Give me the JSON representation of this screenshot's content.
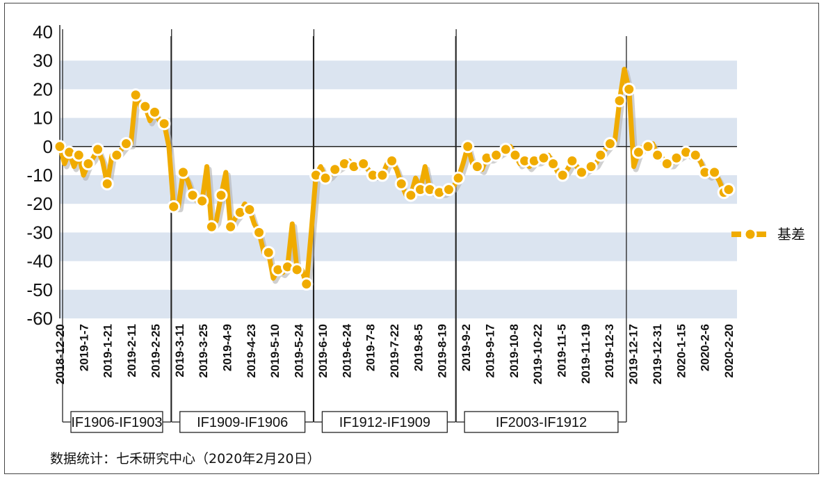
{
  "chart_data": {
    "type": "line",
    "title": "",
    "xlabel": "",
    "ylabel": "",
    "ylim": [
      -60,
      40
    ],
    "y_ticks": [
      40,
      30,
      20,
      10,
      0,
      -10,
      -20,
      -30,
      -40,
      -50,
      -60
    ],
    "x_tick_labels": [
      "2018-12-20",
      "2019-1-7",
      "2019-1-21",
      "2019-2-11",
      "2019-2-25",
      "2019-3-11",
      "2019-3-25",
      "2019-4-9",
      "2019-4-23",
      "2019-5-10",
      "2019-5-24",
      "2019-6-10",
      "2019-6-24",
      "2019-7-8",
      "2019-7-22",
      "2019-8-5",
      "2019-8-19",
      "2019-9-2",
      "2019-9-17",
      "2019-10-8",
      "2019-10-22",
      "2019-11-5",
      "2019-11-19",
      "2019-12-3",
      "2019-12-17",
      "2019-12-31",
      "2020-1-15",
      "2020-2-6",
      "2020-2-20"
    ],
    "grid": "alternating horizontal bands",
    "legend_position": "right",
    "series": [
      {
        "name": "基差",
        "color": "#f0ab00",
        "values": [
          0,
          -6,
          -2,
          -7,
          -3,
          -10,
          -6,
          -4,
          -1,
          -5,
          -13,
          -3,
          -3,
          -1,
          1,
          1,
          18,
          14,
          14,
          9,
          12,
          9,
          8,
          0,
          -21,
          -21,
          -9,
          -12,
          -17,
          -19,
          -19,
          -7,
          -28,
          -26,
          -17,
          -9,
          -28,
          -25,
          -23,
          -20,
          -22,
          -27,
          -30,
          -37,
          -37,
          -46,
          -43,
          -44,
          -42,
          -27,
          -43,
          -43,
          -48,
          -30,
          -10,
          -7,
          -11,
          -10,
          -8,
          -7,
          -6,
          -5,
          -7,
          -6,
          -6,
          -8,
          -10,
          -10,
          -10,
          -6,
          -5,
          -8,
          -13,
          -17,
          -17,
          -11,
          -15,
          -7,
          -15,
          -16,
          -16,
          -16,
          -15,
          -14,
          -11,
          -6,
          0,
          -6,
          -7,
          -8,
          -4,
          -4,
          -3,
          -2,
          -1,
          0,
          -3,
          -6,
          -5,
          -7,
          -5,
          -5,
          -4,
          -3,
          -6,
          -9,
          -10,
          -8,
          -5,
          -7,
          -9,
          -8,
          -7,
          -6,
          -3,
          -1,
          1,
          2,
          16,
          27,
          20,
          -7,
          -2,
          0,
          0,
          1,
          -3,
          -4,
          -6,
          -6,
          -4,
          -3,
          -2,
          -3,
          -3,
          -5,
          -9,
          -10,
          -9,
          -12,
          -16,
          -15
        ]
      }
    ],
    "contract_periods": [
      {
        "label": "IF1906-IF1903",
        "start_index": 1,
        "end_index": 23
      },
      {
        "label": "IF1909-IF1906",
        "start_index": 24,
        "end_index": 53
      },
      {
        "label": "IF1912-IF1909",
        "start_index": 54,
        "end_index": 83
      },
      {
        "label": "IF2003-IF1912",
        "start_index": 84,
        "end_index": 119
      }
    ]
  },
  "source_note": "数据统计：七禾研究中心（2020年2月20日）"
}
